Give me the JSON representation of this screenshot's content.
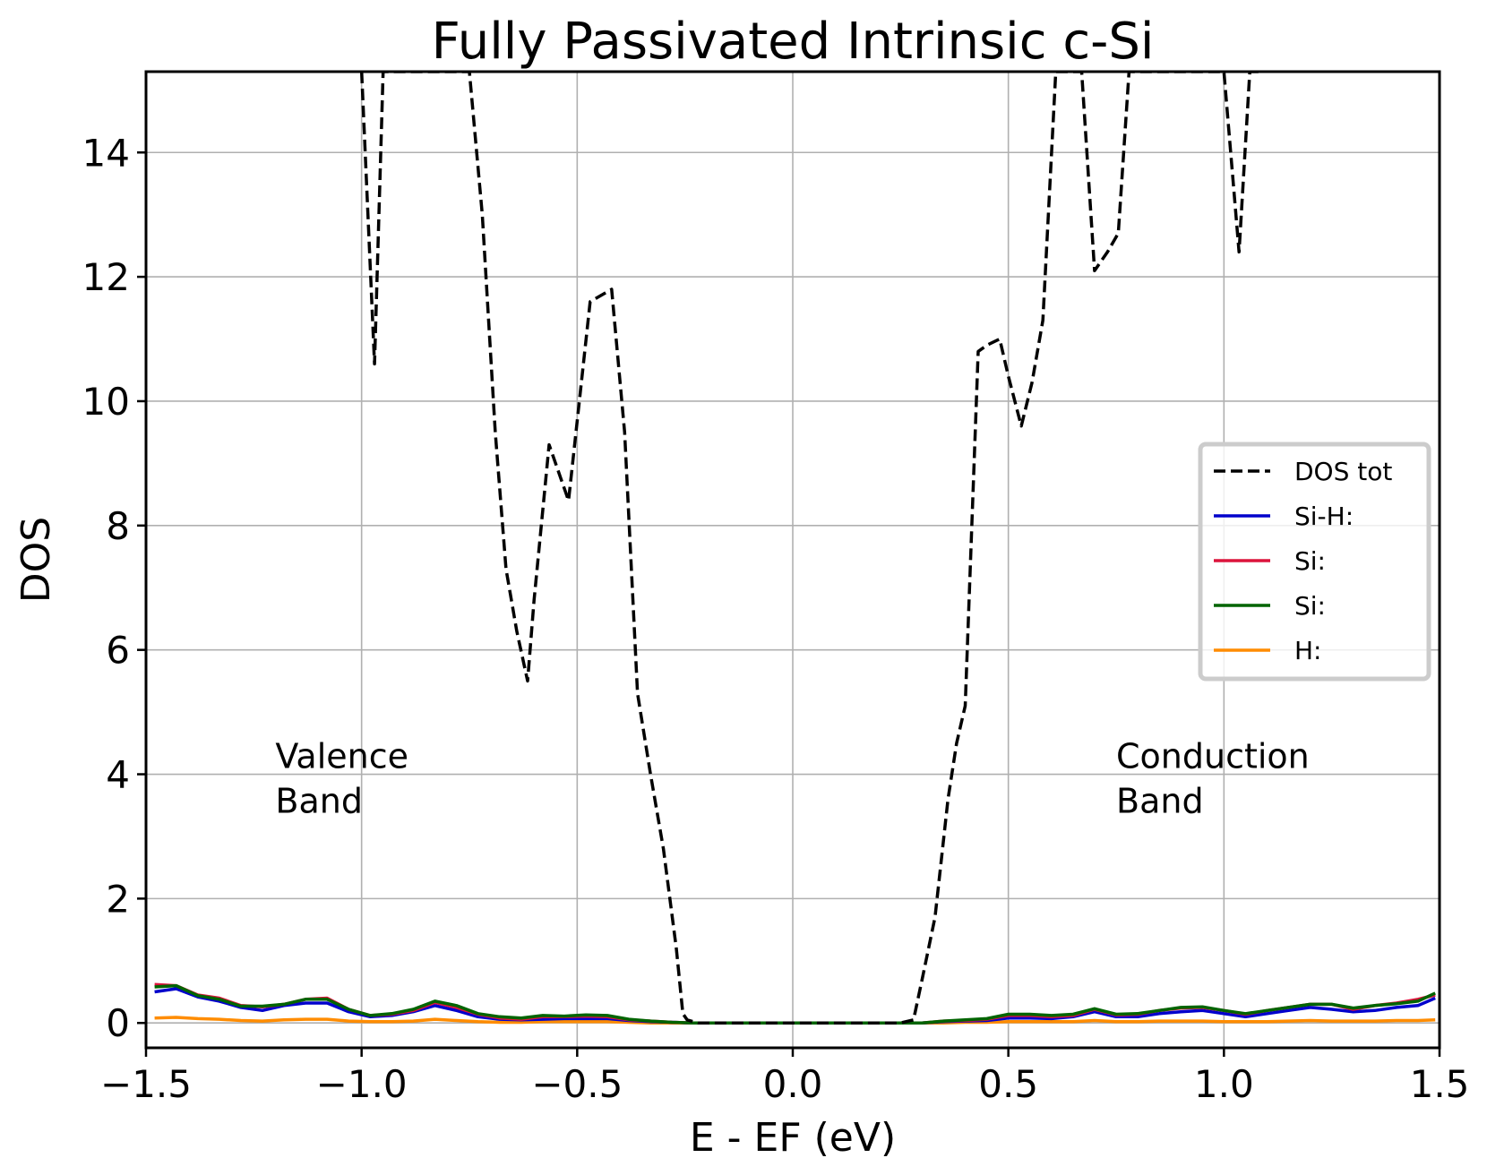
{
  "chart_data": {
    "type": "line",
    "title": "Fully Passivated Intrinsic c-Si",
    "xlabel": "E - EF (eV)",
    "ylabel": "DOS",
    "xlim": [
      -1.5,
      1.5
    ],
    "ylim": [
      -0.4,
      15.3
    ],
    "grid": true,
    "legend_position": "center-right",
    "x_ticks": [
      -1.5,
      -1.0,
      -0.5,
      0.0,
      0.5,
      1.0,
      1.5
    ],
    "x_tick_labels": [
      "−1.5",
      "−1.0",
      "−0.5",
      "0.0",
      "0.5",
      "1.0",
      "1.5"
    ],
    "y_ticks": [
      0,
      2,
      4,
      6,
      8,
      10,
      12,
      14
    ],
    "y_tick_labels": [
      "0",
      "2",
      "4",
      "6",
      "8",
      "10",
      "12",
      "14"
    ],
    "annotations": [
      {
        "lines": [
          "Valence",
          " Band"
        ],
        "x": -1.2,
        "y": 4.1
      },
      {
        "lines": [
          "Conduction",
          " Band"
        ],
        "x": 0.75,
        "y": 4.1
      }
    ],
    "series": [
      {
        "name": "DOS tot",
        "color": "#000000",
        "style": "dashed",
        "x": [
          -1.0,
          -0.97,
          -0.95,
          -0.915,
          -0.75,
          -0.72,
          -0.69,
          -0.665,
          -0.64,
          -0.615,
          -0.6,
          -0.565,
          -0.52,
          -0.47,
          -0.42,
          -0.39,
          -0.36,
          -0.33,
          -0.3,
          -0.27,
          -0.255,
          -0.245,
          -0.22,
          0.0,
          0.25,
          0.28,
          0.3,
          0.33,
          0.36,
          0.38,
          0.4,
          0.43,
          0.45,
          0.48,
          0.5,
          0.53,
          0.555,
          0.58,
          0.61,
          0.635,
          0.67,
          0.7,
          0.73,
          0.755,
          0.78,
          0.81,
          0.85,
          0.985,
          1.0,
          1.035,
          1.06,
          1.08
        ],
        "y": [
          15.3,
          10.6,
          15.3,
          15.3,
          15.3,
          13.0,
          9.5,
          7.3,
          6.3,
          5.5,
          6.8,
          9.3,
          8.4,
          11.6,
          11.8,
          9.5,
          5.3,
          4.0,
          2.8,
          1.2,
          0.15,
          0.05,
          0.0,
          0.0,
          0.0,
          0.05,
          0.7,
          1.7,
          3.6,
          4.5,
          5.1,
          10.8,
          10.9,
          11.0,
          10.4,
          9.6,
          10.3,
          11.3,
          15.3,
          15.3,
          15.3,
          12.1,
          12.4,
          12.7,
          15.3,
          15.3,
          15.3,
          15.3,
          15.3,
          12.4,
          15.3,
          15.3
        ]
      },
      {
        "name": "Si-H:",
        "color": "#0000cc",
        "style": "solid",
        "x": [
          -1.48,
          -1.43,
          -1.38,
          -1.33,
          -1.28,
          -1.23,
          -1.18,
          -1.13,
          -1.08,
          -1.03,
          -0.98,
          -0.93,
          -0.88,
          -0.83,
          -0.78,
          -0.73,
          -0.68,
          -0.63,
          -0.58,
          -0.53,
          -0.48,
          -0.43,
          -0.38,
          -0.33,
          -0.28,
          -0.23,
          -0.18,
          0.0,
          0.25,
          0.3,
          0.35,
          0.4,
          0.45,
          0.5,
          0.55,
          0.6,
          0.65,
          0.7,
          0.75,
          0.8,
          0.85,
          0.9,
          0.95,
          1.0,
          1.05,
          1.1,
          1.15,
          1.2,
          1.25,
          1.3,
          1.35,
          1.4,
          1.45,
          1.49
        ],
        "y": [
          0.5,
          0.55,
          0.42,
          0.35,
          0.25,
          0.2,
          0.28,
          0.32,
          0.32,
          0.18,
          0.1,
          0.12,
          0.18,
          0.28,
          0.2,
          0.1,
          0.06,
          0.05,
          0.06,
          0.07,
          0.07,
          0.07,
          0.04,
          0.02,
          0.01,
          0.0,
          0.0,
          0.0,
          0.0,
          0.0,
          0.02,
          0.03,
          0.04,
          0.08,
          0.08,
          0.07,
          0.1,
          0.18,
          0.1,
          0.1,
          0.15,
          0.18,
          0.2,
          0.15,
          0.1,
          0.15,
          0.2,
          0.25,
          0.22,
          0.18,
          0.2,
          0.25,
          0.28,
          0.4
        ]
      },
      {
        "name": "Si:",
        "color": "#dc143c",
        "style": "solid",
        "x": [
          -1.48,
          -1.43,
          -1.38,
          -1.33,
          -1.28,
          -1.23,
          -1.18,
          -1.13,
          -1.08,
          -1.03,
          -0.98,
          -0.93,
          -0.88,
          -0.83,
          -0.78,
          -0.73,
          -0.68,
          -0.63,
          -0.58,
          -0.53,
          -0.48,
          -0.43,
          -0.38,
          -0.33,
          -0.28,
          -0.23,
          -0.18,
          0.0,
          0.25,
          0.3,
          0.35,
          0.4,
          0.45,
          0.5,
          0.55,
          0.6,
          0.65,
          0.7,
          0.75,
          0.8,
          0.85,
          0.9,
          0.95,
          1.0,
          1.05,
          1.1,
          1.15,
          1.2,
          1.25,
          1.3,
          1.35,
          1.4,
          1.45,
          1.49
        ],
        "y": [
          0.62,
          0.6,
          0.45,
          0.4,
          0.28,
          0.26,
          0.3,
          0.38,
          0.4,
          0.22,
          0.12,
          0.14,
          0.2,
          0.33,
          0.25,
          0.14,
          0.08,
          0.06,
          0.1,
          0.1,
          0.11,
          0.1,
          0.05,
          0.03,
          0.01,
          0.0,
          0.0,
          0.0,
          0.0,
          0.0,
          0.03,
          0.04,
          0.06,
          0.12,
          0.12,
          0.1,
          0.12,
          0.22,
          0.13,
          0.14,
          0.2,
          0.24,
          0.25,
          0.2,
          0.14,
          0.2,
          0.25,
          0.3,
          0.3,
          0.22,
          0.28,
          0.32,
          0.38,
          0.45
        ]
      },
      {
        "name": "Si:",
        "color": "#006400",
        "style": "solid",
        "x": [
          -1.48,
          -1.43,
          -1.38,
          -1.33,
          -1.28,
          -1.23,
          -1.18,
          -1.13,
          -1.08,
          -1.03,
          -0.98,
          -0.93,
          -0.88,
          -0.83,
          -0.78,
          -0.73,
          -0.68,
          -0.63,
          -0.58,
          -0.53,
          -0.48,
          -0.43,
          -0.38,
          -0.33,
          -0.28,
          -0.23,
          -0.18,
          0.0,
          0.25,
          0.3,
          0.35,
          0.4,
          0.45,
          0.5,
          0.55,
          0.6,
          0.65,
          0.7,
          0.75,
          0.8,
          0.85,
          0.9,
          0.95,
          1.0,
          1.05,
          1.1,
          1.15,
          1.2,
          1.25,
          1.3,
          1.35,
          1.4,
          1.45,
          1.49
        ],
        "y": [
          0.58,
          0.6,
          0.44,
          0.38,
          0.27,
          0.27,
          0.3,
          0.38,
          0.38,
          0.22,
          0.12,
          0.15,
          0.22,
          0.35,
          0.28,
          0.15,
          0.1,
          0.08,
          0.12,
          0.11,
          0.13,
          0.12,
          0.06,
          0.03,
          0.01,
          0.0,
          0.0,
          0.0,
          0.0,
          0.0,
          0.03,
          0.05,
          0.07,
          0.14,
          0.14,
          0.12,
          0.14,
          0.23,
          0.14,
          0.15,
          0.2,
          0.25,
          0.26,
          0.2,
          0.15,
          0.2,
          0.25,
          0.3,
          0.3,
          0.24,
          0.28,
          0.31,
          0.35,
          0.48
        ]
      },
      {
        "name": "H:",
        "color": "#ff8c00",
        "style": "solid",
        "x": [
          -1.48,
          -1.43,
          -1.38,
          -1.33,
          -1.28,
          -1.23,
          -1.18,
          -1.13,
          -1.08,
          -1.03,
          -0.98,
          -0.93,
          -0.88,
          -0.83,
          -0.78,
          -0.73,
          -0.68,
          -0.63,
          -0.58,
          -0.53,
          -0.48,
          -0.43,
          -0.38,
          -0.33,
          -0.28,
          -0.23,
          -0.18,
          0.0,
          0.25,
          0.3,
          0.35,
          0.4,
          0.45,
          0.5,
          0.55,
          0.6,
          0.65,
          0.7,
          0.75,
          0.8,
          0.85,
          0.9,
          0.95,
          1.0,
          1.05,
          1.1,
          1.15,
          1.2,
          1.25,
          1.3,
          1.35,
          1.4,
          1.45,
          1.49
        ],
        "y": [
          0.08,
          0.09,
          0.07,
          0.06,
          0.04,
          0.03,
          0.05,
          0.06,
          0.06,
          0.03,
          0.02,
          0.02,
          0.03,
          0.06,
          0.04,
          0.02,
          0.01,
          0.01,
          0.02,
          0.02,
          0.02,
          0.02,
          0.01,
          0.0,
          0.0,
          0.0,
          0.0,
          0.0,
          0.0,
          0.0,
          0.0,
          0.01,
          0.01,
          0.02,
          0.02,
          0.02,
          0.02,
          0.04,
          0.02,
          0.02,
          0.03,
          0.03,
          0.03,
          0.02,
          0.02,
          0.02,
          0.03,
          0.04,
          0.03,
          0.03,
          0.03,
          0.04,
          0.04,
          0.05
        ]
      }
    ]
  }
}
